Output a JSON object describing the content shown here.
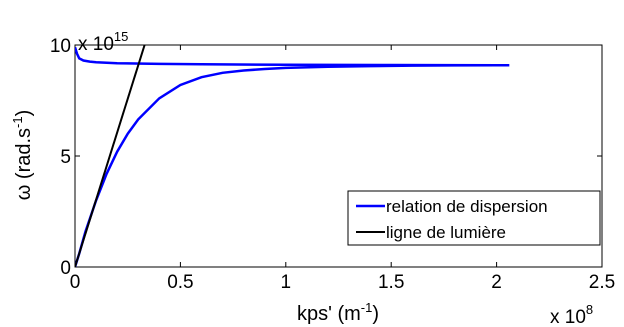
{
  "chart_data": {
    "type": "line",
    "title": "",
    "xlabel": "kps' (m",
    "xlabel_sup": "-1",
    "xlabel_close": ")",
    "ylabel": "ω (rad.s",
    "ylabel_sup": "-1",
    "ylabel_close": ")",
    "x_multiplier": "x 10",
    "x_multiplier_exp": "8",
    "y_multiplier": "x 10",
    "y_multiplier_exp": "15",
    "xlim": [
      0,
      2.5
    ],
    "ylim": [
      0,
      10
    ],
    "x_ticks": [
      "0",
      "0.5",
      "1",
      "1.5",
      "2",
      "2.5"
    ],
    "y_ticks": [
      "0",
      "5",
      "10"
    ],
    "grid": false,
    "legend_position": "bottom-right",
    "series": [
      {
        "name": "relation de dispersion",
        "color": "#0000ff",
        "branches": [
          {
            "x": [
              0,
              0.02,
              0.05,
              0.1,
              0.15,
              0.2,
              0.25,
              0.3,
              0.4,
              0.5,
              0.6,
              0.7,
              0.8,
              0.9,
              1.0,
              1.2,
              1.4,
              1.6,
              1.8,
              2.0,
              2.06
            ],
            "y": [
              0,
              0.6,
              1.6,
              3.0,
              4.2,
              5.2,
              6.0,
              6.65,
              7.6,
              8.2,
              8.55,
              8.75,
              8.85,
              8.92,
              8.97,
              9.02,
              9.05,
              9.07,
              9.08,
              9.09,
              9.09
            ]
          },
          {
            "x": [
              0,
              0.01,
              0.02,
              0.04,
              0.07,
              0.1,
              0.2,
              0.4,
              0.6,
              1.0,
              1.5,
              2.0,
              2.06
            ],
            "y": [
              9.9,
              9.6,
              9.4,
              9.3,
              9.25,
              9.22,
              9.18,
              9.15,
              9.13,
              9.11,
              9.1,
              9.09,
              9.09
            ]
          }
        ]
      },
      {
        "name": "ligne de lumière",
        "color": "#000000",
        "branches": [
          {
            "x": [
              0,
              0.33
            ],
            "y": [
              0,
              10
            ]
          }
        ]
      }
    ]
  }
}
